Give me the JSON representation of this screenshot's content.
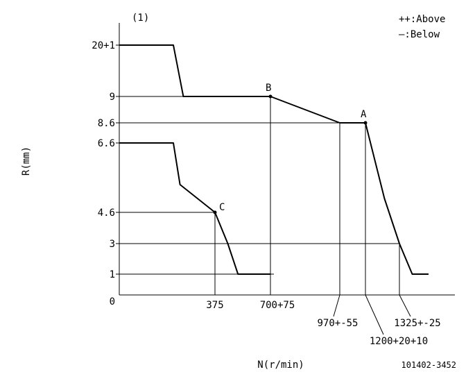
{
  "chart_data": {
    "type": "line",
    "panel_label": "(1)",
    "legend": [
      "++:Above",
      "—:Below"
    ],
    "xlabel": "N(r/min)",
    "ylabel": "R(mm)",
    "drawing_number": "101402-3452",
    "y_ticks": [
      {
        "label": "20+1",
        "value": 20
      },
      {
        "label": "9",
        "value": 9
      },
      {
        "label": "8.6",
        "value": 8.6
      },
      {
        "label": "6.6",
        "value": 6.6
      },
      {
        "label": "4.6",
        "value": 4.6
      },
      {
        "label": "3",
        "value": 3
      },
      {
        "label": "1",
        "value": 1
      },
      {
        "label": "0",
        "value": 0
      }
    ],
    "x_ticks": [
      {
        "label": "375",
        "value": 375
      },
      {
        "label": "700+75",
        "value": 700
      },
      {
        "label": "970+-55",
        "value": 970
      },
      {
        "label": "1200+20+10",
        "value": 1200
      },
      {
        "label": "1325+-25",
        "value": 1325
      }
    ],
    "series": [
      {
        "points": [
          [
            0,
            20
          ],
          [
            250,
            20
          ],
          [
            280,
            9
          ],
          [
            700,
            9
          ],
          [
            970,
            8.6
          ],
          [
            1200,
            8.6
          ],
          [
            1270,
            5.0
          ],
          [
            1325,
            3
          ],
          [
            1380,
            1
          ],
          [
            1450,
            1
          ]
        ]
      },
      {
        "points": [
          [
            0,
            6.6
          ],
          [
            250,
            6.6
          ],
          [
            270,
            5.4
          ],
          [
            375,
            4.6
          ],
          [
            450,
            3
          ],
          [
            510,
            1
          ],
          [
            700,
            1
          ]
        ]
      }
    ],
    "points": [
      {
        "label": "A",
        "x": 1200,
        "y": 8.6
      },
      {
        "label": "B",
        "x": 700,
        "y": 9
      },
      {
        "label": "C",
        "x": 375,
        "y": 4.6
      }
    ]
  }
}
